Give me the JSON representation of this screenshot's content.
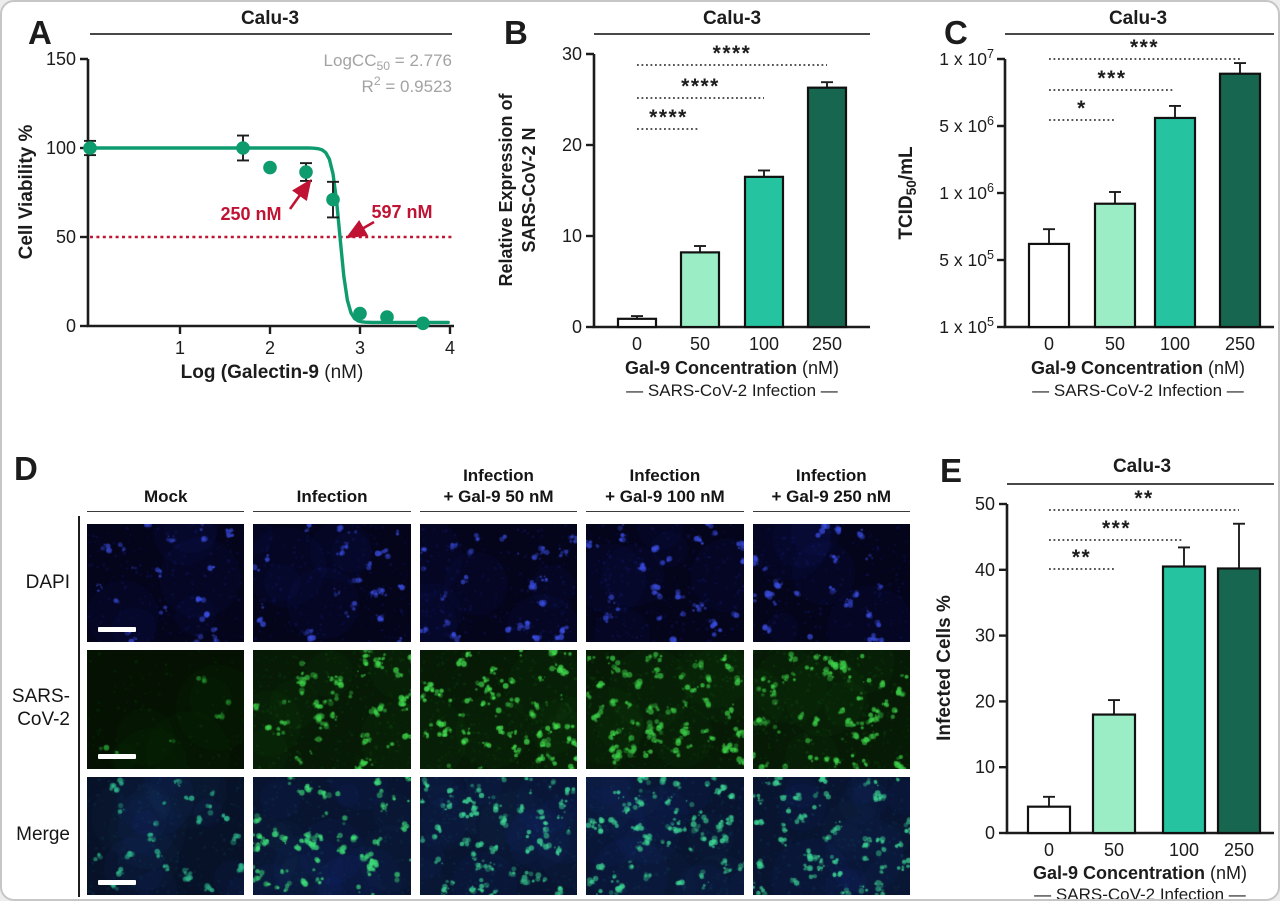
{
  "figure": {
    "title_repeated": "Calu-3"
  },
  "colors": {
    "curve_green": "#0E9C6F",
    "bar_fill": [
      "#FFFFFF",
      "#9BEDC5",
      "#26C3A0",
      "#17664F"
    ],
    "bar_stroke": "#111111",
    "annotation_red": "#C01334",
    "stats_gray": "#A3A3A3",
    "axis_black": "#1c1c1c"
  },
  "chart_data": [
    {
      "id": "A",
      "type": "scatter",
      "panel_label": "A",
      "title": "Calu-3",
      "xlabel_bold": "Log (Galectin-9 ",
      "xlabel_regular": "(nM)",
      "ylabel": "Cell Viability %",
      "x_ticks": [
        1,
        2,
        3,
        4
      ],
      "y_ticks": [
        0,
        50,
        100,
        150
      ],
      "xlim": [
        0,
        4
      ],
      "ylim": [
        0,
        150
      ],
      "points_x": [
        0,
        1.7,
        2.0,
        2.4,
        2.7,
        3.0,
        3.3,
        3.7
      ],
      "points_y": [
        100,
        100,
        89,
        86.5,
        71,
        7,
        5,
        1.5
      ],
      "points_err": [
        4,
        7,
        0,
        5,
        10,
        0,
        0,
        0
      ],
      "curve_fit": {
        "top": 100,
        "bottom": 2,
        "logcc50": 2.776,
        "hillslope": 10
      },
      "threshold_line_y": 50,
      "stats_lines": [
        "LogCC_{50} = 2.776",
        "R^{2} = 0.9523"
      ],
      "annotations": [
        {
          "text": "250 nM"
        },
        {
          "text": "597 nM"
        }
      ]
    },
    {
      "id": "B",
      "type": "bar",
      "panel_label": "B",
      "title": "Calu-3",
      "ylabel_lines": [
        "Relative Expression of",
        "SARS-CoV-2 N"
      ],
      "xlabel_bold": "Gal-9 Concentration",
      "xlabel_regular": " (nM)",
      "xlabel2": "— SARS-CoV-2 Infection —",
      "categories": [
        "0",
        "50",
        "100",
        "250"
      ],
      "values": [
        0.9,
        8.2,
        16.5,
        26.3
      ],
      "errors": [
        0.3,
        0.7,
        0.7,
        0.6
      ],
      "y_ticks": [
        0,
        10,
        20,
        30
      ],
      "ylim": [
        0,
        30
      ],
      "significance": [
        {
          "from": 0,
          "to": 1,
          "stars": "****"
        },
        {
          "from": 0,
          "to": 2,
          "stars": "****"
        },
        {
          "from": 0,
          "to": 3,
          "stars": "****"
        }
      ]
    },
    {
      "id": "C",
      "type": "bar-log",
      "panel_label": "C",
      "title": "Calu-3",
      "ylabel": "TCID_{50}/mL",
      "xlabel_bold": "Gal-9 Concentration",
      "xlabel_regular": " (nM)",
      "xlabel2": "— SARS-CoV-2 Infection —",
      "categories": [
        "0",
        "50",
        "100",
        "250"
      ],
      "values": [
        620000,
        920000,
        5600000,
        8900000
      ],
      "errors": [
        110000,
        140000,
        900000,
        800000
      ],
      "y_tick_values": [
        100000,
        500000,
        1000000,
        5000000,
        10000000
      ],
      "y_tick_labels": [
        "1 x 10^{5}",
        "5 x 10^{5}",
        "1 x 10^{6}",
        "5 x 10^{6}",
        "1 x 10^{7}"
      ],
      "significance": [
        {
          "from": 0,
          "to": 1,
          "stars": "*"
        },
        {
          "from": 0,
          "to": 2,
          "stars": "***"
        },
        {
          "from": 0,
          "to": 3,
          "stars": "***"
        }
      ]
    },
    {
      "id": "E",
      "type": "bar",
      "panel_label": "E",
      "title": "Calu-3",
      "ylabel": "Infected Cells %",
      "xlabel_bold": "Gal-9 Concentration",
      "xlabel_regular": " (nM)",
      "xlabel2": "— SARS-CoV-2 Infection —",
      "categories": [
        "0",
        "50",
        "100",
        "250"
      ],
      "values": [
        4,
        18,
        40.5,
        40.2
      ],
      "errors": [
        1.5,
        2.2,
        2.9,
        6.8
      ],
      "y_ticks": [
        0,
        10,
        20,
        30,
        40,
        50
      ],
      "ylim": [
        0,
        50
      ],
      "significance": [
        {
          "from": 0,
          "to": 1,
          "stars": "**"
        },
        {
          "from": 0,
          "to": 2,
          "stars": "***"
        },
        {
          "from": 0,
          "to": 3,
          "stars": "**"
        }
      ]
    }
  ],
  "microscopy": {
    "panel_label": "D",
    "column_headers": [
      "Mock",
      "Infection",
      "Infection\n+ Gal-9 50 nM",
      "Infection\n+ Gal-9 100 nM",
      "Infection\n+ Gal-9 250 nM"
    ],
    "row_labels": [
      "DAPI",
      "SARS-\nCoV-2",
      "Merge"
    ],
    "rows": [
      {
        "name": "DAPI",
        "cells": [
          {
            "base": "#04041a",
            "speck": "#2433b8",
            "bright": "#3a4de0",
            "density": 0.55,
            "blobs": 20
          },
          {
            "base": "#04041a",
            "speck": "#2433b8",
            "bright": "#3a4de0",
            "density": 0.55,
            "blobs": 24
          },
          {
            "base": "#04041a",
            "speck": "#2433b8",
            "bright": "#3a4de0",
            "density": 0.6,
            "blobs": 26
          },
          {
            "base": "#04041a",
            "speck": "#2433b8",
            "bright": "#3a4de0",
            "density": 0.6,
            "blobs": 28
          },
          {
            "base": "#04041a",
            "speck": "#2433b8",
            "bright": "#3a4de0",
            "density": 0.55,
            "blobs": 24
          }
        ]
      },
      {
        "name": "SARS-CoV-2",
        "cells": [
          {
            "base": "#051203",
            "speck": "#156018",
            "bright": "#2aa332",
            "density": 0.3,
            "blobs": 6
          },
          {
            "base": "#061a05",
            "speck": "#1d7a22",
            "bright": "#3ed44a",
            "density": 0.55,
            "blobs": 48
          },
          {
            "base": "#061a05",
            "speck": "#1d7a22",
            "bright": "#44e050",
            "density": 0.7,
            "blobs": 62
          },
          {
            "base": "#061a05",
            "speck": "#1d7a22",
            "bright": "#3ed44a",
            "density": 0.72,
            "blobs": 66
          },
          {
            "base": "#061a05",
            "speck": "#1d7a22",
            "bright": "#3ed44a",
            "density": 0.65,
            "blobs": 58
          }
        ]
      },
      {
        "name": "Merge",
        "cells": [
          {
            "base": "#071228",
            "speck": "#1c5a7a",
            "bright": "#2fb98e",
            "density": 0.5,
            "blobs": 24,
            "haze": "#1b2f9e"
          },
          {
            "base": "#081430",
            "speck": "#1c5a7a",
            "bright": "#3ee07a",
            "density": 0.5,
            "blobs": 55,
            "haze": "#1b2f9e"
          },
          {
            "base": "#081430",
            "speck": "#1c5a7a",
            "bright": "#3ed896",
            "density": 0.6,
            "blobs": 60,
            "haze": "#1b2f9e"
          },
          {
            "base": "#081430",
            "speck": "#1c5a7a",
            "bright": "#3ed896",
            "density": 0.62,
            "blobs": 64,
            "haze": "#1b2f9e"
          },
          {
            "base": "#081430",
            "speck": "#1c5a7a",
            "bright": "#3ed896",
            "density": 0.6,
            "blobs": 56,
            "haze": "#1b2f9e"
          }
        ]
      }
    ]
  }
}
